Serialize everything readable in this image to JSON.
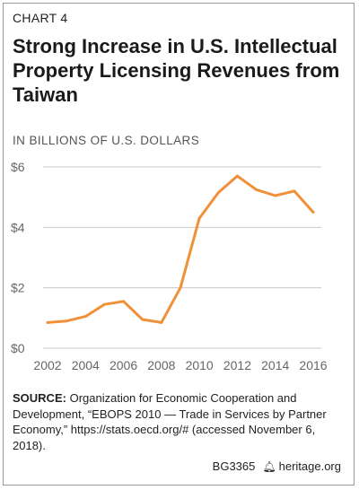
{
  "header": {
    "chart_number": "CHART 4",
    "title": "Strong Increase in U.S. Intellectual Property Licensing Revenues from Taiwan",
    "units": "IN BILLIONS OF U.S. DOLLARS"
  },
  "source": {
    "label": "SOURCE:",
    "text": "Organization for Economic Cooperation and Development, “EBOPS 2010 — Trade in Services by Partner Economy,” https://stats.oecd.org/# (accessed November 6, 2018)."
  },
  "footer": {
    "report_id": "BG3365",
    "site": "heritage.org"
  },
  "colors": {
    "line": "#f0913a",
    "grid": "#c9c9c9",
    "axis_text": "#666666"
  },
  "chart_data": {
    "type": "line",
    "title": "Strong Increase in U.S. Intellectual Property Licensing Revenues from Taiwan",
    "ylabel": "IN BILLIONS OF U.S. DOLLARS",
    "xlabel": "",
    "x": [
      2002,
      2003,
      2004,
      2005,
      2006,
      2007,
      2008,
      2009,
      2010,
      2011,
      2012,
      2013,
      2014,
      2015,
      2016
    ],
    "series": [
      {
        "values": [
          0.85,
          0.9,
          1.05,
          1.45,
          1.55,
          0.95,
          0.85,
          2.0,
          4.3,
          5.15,
          5.7,
          5.25,
          5.05,
          5.2,
          4.5
        ]
      }
    ],
    "ylim": [
      0,
      6
    ],
    "xlim": [
      2002,
      2016
    ],
    "yticks": [
      0,
      2,
      4,
      6
    ],
    "ytick_labels": [
      "$0",
      "$2",
      "$4",
      "$6"
    ],
    "xticks": [
      2002,
      2004,
      2006,
      2008,
      2010,
      2012,
      2014,
      2016
    ],
    "xtick_labels": [
      "2002",
      "2004",
      "2006",
      "2008",
      "2010",
      "2012",
      "2014",
      "2016"
    ],
    "grid": true,
    "legend": false
  }
}
